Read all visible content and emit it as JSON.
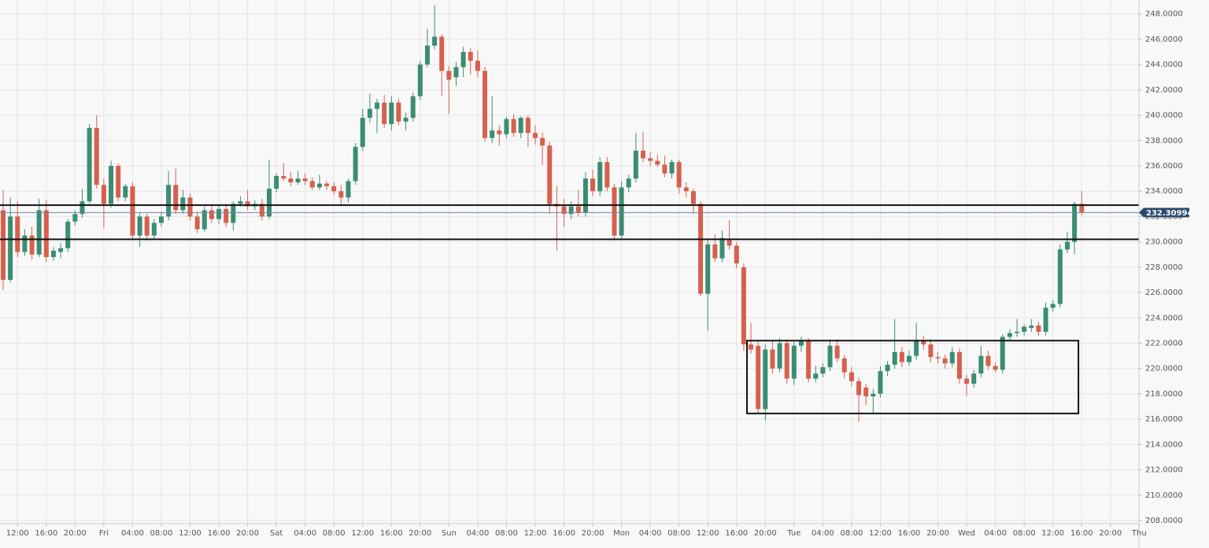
{
  "chart_data": {
    "type": "candlestick",
    "up_color": "#3a8d73",
    "down_color": "#d6604d",
    "grid": true,
    "ylim": [
      207.75,
      249.1
    ],
    "yticks": [
      {
        "value": 208,
        "label": "208.0000"
      },
      {
        "value": 210,
        "label": "210.0000"
      },
      {
        "value": 212,
        "label": "212.0000"
      },
      {
        "value": 214,
        "label": "214.0000"
      },
      {
        "value": 216,
        "label": "216.0000"
      },
      {
        "value": 218,
        "label": "218.0000"
      },
      {
        "value": 220,
        "label": "220.0000"
      },
      {
        "value": 222,
        "label": "222.0000"
      },
      {
        "value": 224,
        "label": "224.0000"
      },
      {
        "value": 226,
        "label": "226.0000"
      },
      {
        "value": 228,
        "label": "228.0000"
      },
      {
        "value": 230,
        "label": "230.0000"
      },
      {
        "value": 232,
        "label": "232.0000"
      },
      {
        "value": 234,
        "label": "234.0000"
      },
      {
        "value": 236,
        "label": "236.0000"
      },
      {
        "value": 238,
        "label": "238.0000"
      },
      {
        "value": 240,
        "label": "240.0000"
      },
      {
        "value": 242,
        "label": "242.0000"
      },
      {
        "value": 244,
        "label": "244.0000"
      },
      {
        "value": 246,
        "label": "246.0000"
      },
      {
        "value": 248,
        "label": "248.0000"
      }
    ],
    "xticks": [
      "12:00",
      "16:00",
      "20:00",
      "Fri",
      "04:00",
      "08:00",
      "12:00",
      "16:00",
      "20:00",
      "Sat",
      "04:00",
      "08:00",
      "12:00",
      "16:00",
      "20:00",
      "Sun",
      "04:00",
      "08:00",
      "12:00",
      "16:00",
      "20:00",
      "Mon",
      "04:00",
      "08:00",
      "12:00",
      "16:00",
      "20:00",
      "Tue",
      "04:00",
      "08:00",
      "12:00",
      "16:00",
      "20:00",
      "Wed",
      "04:00",
      "08:00",
      "12:00",
      "16:00",
      "20:00",
      "Thu"
    ],
    "last_price": 232.30994,
    "levels": [
      232.9,
      230.2
    ],
    "zone": {
      "start": 104,
      "end": 149,
      "low": 216.45,
      "high": 222.2
    },
    "candles": [
      [
        232.5,
        234.1,
        226.2,
        227
      ],
      [
        227,
        233.5,
        226.8,
        232
      ],
      [
        232,
        233.2,
        228.8,
        229.2
      ],
      [
        229.2,
        231,
        228.9,
        230.5
      ],
      [
        230.5,
        231.2,
        228.6,
        229
      ],
      [
        229,
        233.4,
        228.8,
        232.5
      ],
      [
        232.5,
        233.3,
        228.4,
        228.8
      ],
      [
        228.8,
        229.6,
        228.5,
        229.3
      ],
      [
        229.2,
        229.9,
        228.7,
        229.5
      ],
      [
        229.5,
        231.8,
        229.2,
        231.6
      ],
      [
        231.6,
        232.5,
        231.3,
        232.2
      ],
      [
        232.2,
        234.2,
        231.9,
        233.2
      ],
      [
        233.2,
        239.3,
        233,
        239
      ],
      [
        239,
        240,
        234.2,
        234.5
      ],
      [
        234.5,
        235,
        231.1,
        233
      ],
      [
        233,
        236.4,
        232.7,
        236
      ],
      [
        236,
        236.2,
        233.2,
        233.5
      ],
      [
        233.5,
        234.6,
        233.2,
        234.4
      ],
      [
        234.4,
        234.7,
        230.1,
        230.5
      ],
      [
        230.5,
        232.3,
        229.6,
        232
      ],
      [
        232,
        232.2,
        230.1,
        230.5
      ],
      [
        230.5,
        231.8,
        230.2,
        231.5
      ],
      [
        231.5,
        232.4,
        231.2,
        232
      ],
      [
        232,
        235.6,
        231.7,
        234.5
      ],
      [
        234.5,
        235.8,
        232.2,
        232.5
      ],
      [
        232.5,
        234.1,
        232.2,
        233.5
      ],
      [
        233.5,
        233.8,
        231.7,
        232
      ],
      [
        232,
        232.4,
        230.7,
        231
      ],
      [
        231,
        232.8,
        230.8,
        232.5
      ],
      [
        232.5,
        232.9,
        231.5,
        231.8
      ],
      [
        231.8,
        232.9,
        231.4,
        232.6
      ],
      [
        232.6,
        232.9,
        231.2,
        231.5
      ],
      [
        231.5,
        233.2,
        230.9,
        233
      ],
      [
        233,
        233.6,
        232.8,
        233.2
      ],
      [
        233.2,
        234.1,
        232.5,
        232.8
      ],
      [
        232.8,
        233.3,
        232.5,
        233
      ],
      [
        233,
        233.4,
        231.7,
        232
      ],
      [
        232,
        236.5,
        231.8,
        234.2
      ],
      [
        234.2,
        235.4,
        233.9,
        235.2
      ],
      [
        235.2,
        236.2,
        234.8,
        235
      ],
      [
        235,
        235.5,
        234.4,
        234.7
      ],
      [
        234.7,
        235.6,
        234.5,
        235
      ],
      [
        235,
        235.4,
        234.5,
        234.8
      ],
      [
        234.8,
        235.1,
        234.1,
        234.3
      ],
      [
        234.3,
        235.3,
        234.1,
        234.6
      ],
      [
        234.6,
        234.8,
        234.1,
        234.4
      ],
      [
        234.4,
        234.7,
        233.7,
        234
      ],
      [
        234,
        234.5,
        232.9,
        233.5
      ],
      [
        233.5,
        235,
        233.1,
        234.8
      ],
      [
        234.8,
        237.8,
        234.5,
        237.5
      ],
      [
        237.5,
        240.5,
        237.2,
        239.8
      ],
      [
        239.8,
        241.7,
        239.4,
        240.5
      ],
      [
        240.5,
        241.3,
        238.6,
        241
      ],
      [
        241,
        241.6,
        239,
        239.3
      ],
      [
        239.3,
        241.5,
        238.8,
        241
      ],
      [
        241,
        241.3,
        239.2,
        239.5
      ],
      [
        239.5,
        240.2,
        238.8,
        239.8
      ],
      [
        239.8,
        241.8,
        239.5,
        241.5
      ],
      [
        241.5,
        244.3,
        241.2,
        244
      ],
      [
        244,
        246.8,
        243.8,
        245.5
      ],
      [
        245.5,
        248.7,
        245.2,
        246.2
      ],
      [
        246.2,
        246.4,
        241.5,
        243.5
      ],
      [
        243.5,
        243.9,
        240.1,
        242.8
      ],
      [
        243,
        244.2,
        242.3,
        243.8
      ],
      [
        243.8,
        245.4,
        243,
        245
      ],
      [
        245,
        245.3,
        243.2,
        244.3
      ],
      [
        244.3,
        245.1,
        243,
        243.5
      ],
      [
        243.5,
        243.8,
        237.9,
        238.2
      ],
      [
        238.2,
        241.5,
        237.8,
        238.8
      ],
      [
        238.8,
        239.2,
        237.6,
        238.5
      ],
      [
        238.5,
        239.9,
        238.2,
        239.7
      ],
      [
        239.7,
        240.1,
        238.3,
        238.6
      ],
      [
        238.6,
        239.9,
        238.2,
        239.8
      ],
      [
        239.8,
        240,
        237.5,
        238.6
      ],
      [
        238.6,
        239.2,
        237.7,
        238.2
      ],
      [
        238.2,
        238.6,
        236.1,
        237.6
      ],
      [
        237.6,
        237.9,
        232.2,
        233
      ],
      [
        233,
        234.4,
        229.3,
        232.8
      ],
      [
        232.8,
        233.4,
        231.2,
        232.2
      ],
      [
        232.2,
        233.2,
        231.8,
        232.8
      ],
      [
        232.8,
        234.1,
        232,
        232.3
      ],
      [
        232.3,
        235.5,
        232,
        235
      ],
      [
        235,
        235.7,
        233.6,
        234
      ],
      [
        234,
        236.7,
        233.6,
        236.3
      ],
      [
        236.3,
        236.7,
        234,
        234.3
      ],
      [
        234.3,
        234.6,
        230.1,
        230.5
      ],
      [
        230.5,
        234.8,
        230.2,
        234.3
      ],
      [
        234.3,
        235.3,
        233.9,
        235
      ],
      [
        235,
        238.6,
        234.7,
        237.2
      ],
      [
        237.2,
        238.7,
        236.3,
        236.6
      ],
      [
        236.6,
        237.1,
        236,
        236.4
      ],
      [
        236.4,
        236.9,
        235.9,
        236.1
      ],
      [
        236.1,
        236.8,
        235.1,
        235.4
      ],
      [
        235.4,
        236.5,
        235,
        236.3
      ],
      [
        236.3,
        236.5,
        233.8,
        234.3
      ],
      [
        234.3,
        234.7,
        233.5,
        234
      ],
      [
        234,
        234.2,
        232.2,
        233
      ],
      [
        233,
        233.2,
        225.7,
        225.9
      ],
      [
        225.9,
        230.2,
        223,
        229.8
      ],
      [
        229.8,
        230.6,
        228.4,
        228.7
      ],
      [
        228.7,
        230.9,
        228.4,
        230.3
      ],
      [
        230.2,
        231.7,
        229.4,
        229.7
      ],
      [
        229.7,
        230,
        227.9,
        228.3
      ],
      [
        228,
        228.3,
        221.4,
        221.9
      ],
      [
        221.9,
        223.6,
        221.2,
        221.5
      ],
      [
        221.8,
        222.1,
        216.5,
        216.8
      ],
      [
        216.8,
        221.9,
        215.9,
        221.5
      ],
      [
        221.5,
        222.2,
        219.6,
        220
      ],
      [
        220,
        222.4,
        219.7,
        222
      ],
      [
        222,
        222.3,
        218.8,
        219.2
      ],
      [
        219.2,
        222.1,
        218.7,
        221.8
      ],
      [
        221.8,
        222.5,
        221.3,
        222.2
      ],
      [
        222.2,
        222.4,
        218.9,
        219.2
      ],
      [
        219.2,
        220.2,
        218.9,
        219.6
      ],
      [
        219.6,
        220.4,
        219.3,
        220.1
      ],
      [
        220.1,
        222.3,
        219.8,
        221.8
      ],
      [
        221.8,
        222.3,
        220.5,
        220.8
      ],
      [
        220.8,
        221.1,
        219.2,
        219.7
      ],
      [
        219.7,
        220.1,
        218.6,
        219
      ],
      [
        219,
        219.3,
        215.8,
        217.9
      ],
      [
        218.5,
        218.8,
        217.1,
        217.8
      ],
      [
        217.8,
        218.4,
        216.5,
        218
      ],
      [
        218,
        220.2,
        217.7,
        219.8
      ],
      [
        219.8,
        220.6,
        219.4,
        220.3
      ],
      [
        220.3,
        223.9,
        220,
        221.3
      ],
      [
        221.3,
        221.7,
        220.1,
        220.5
      ],
      [
        220.5,
        221.4,
        220.2,
        221
      ],
      [
        221,
        223.6,
        220.7,
        222.2
      ],
      [
        222.2,
        222.6,
        221.5,
        221.9
      ],
      [
        221.9,
        222.3,
        220.5,
        220.9
      ],
      [
        220.9,
        221.3,
        220.4,
        220.8
      ],
      [
        220.8,
        221.1,
        220,
        220.4
      ],
      [
        220.4,
        221.7,
        220.1,
        221.3
      ],
      [
        221.3,
        221.6,
        218.8,
        219.2
      ],
      [
        219.2,
        219.5,
        217.8,
        218.8
      ],
      [
        218.8,
        219.9,
        218.5,
        219.6
      ],
      [
        219.6,
        221.8,
        219.3,
        221
      ],
      [
        221,
        221.4,
        219.9,
        220.2
      ],
      [
        220.2,
        220.5,
        219.7,
        219.9
      ],
      [
        219.9,
        222.7,
        219.6,
        222.5
      ],
      [
        222.5,
        223.1,
        222.2,
        222.8
      ],
      [
        222.8,
        223.9,
        222.5,
        222.9
      ],
      [
        222.9,
        223.5,
        222.6,
        223.3
      ],
      [
        223.2,
        223.9,
        222.9,
        223.4
      ],
      [
        223.4,
        223.7,
        222.6,
        222.9
      ],
      [
        222.9,
        225.2,
        222.6,
        224.8
      ],
      [
        224.8,
        225.4,
        224.5,
        225.1
      ],
      [
        225.1,
        229.8,
        224.8,
        229.4
      ],
      [
        229.4,
        230.8,
        229.1,
        230
      ],
      [
        230,
        233.2,
        229,
        233
      ],
      [
        233,
        234,
        232.1,
        232.30994
      ]
    ]
  }
}
